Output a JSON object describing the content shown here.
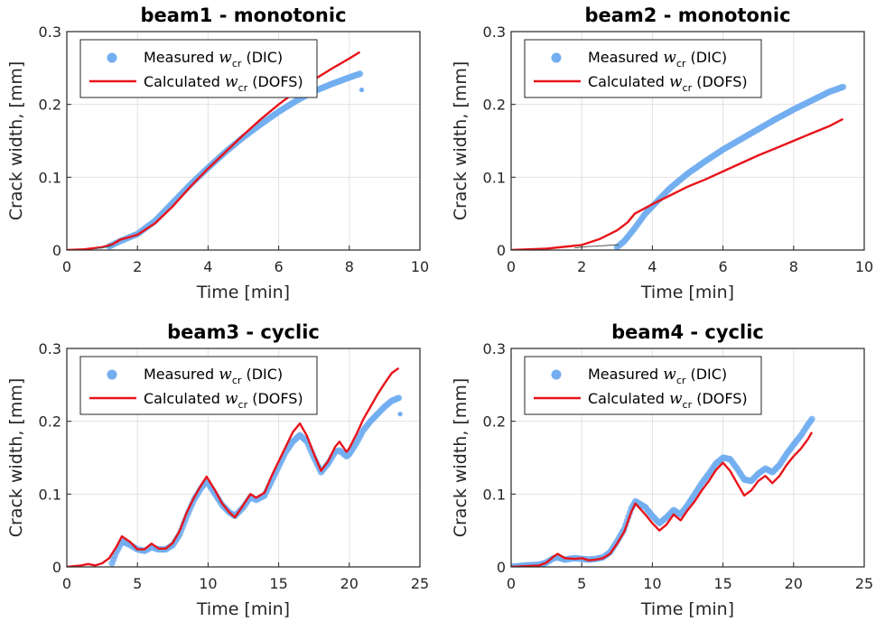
{
  "colors": {
    "measured": "#72aef0",
    "calculated": "#e8141b",
    "thin": "#555555",
    "grid": "#e2e2e2",
    "axis": "#262626"
  },
  "chart_data": [
    {
      "type": "line",
      "title": "beam1 - monotonic",
      "xlabel": "Time [min]",
      "ylabel": "Crack width, [mm]",
      "xlim": [
        0,
        10
      ],
      "ylim": [
        0,
        0.3
      ],
      "xticks": [
        0,
        2,
        4,
        6,
        8,
        10
      ],
      "yticks": [
        0,
        0.1,
        0.2,
        0.3
      ],
      "xtick_labels": [
        "0",
        "2",
        "4",
        "6",
        "8",
        "10"
      ],
      "ytick_labels": [
        "0",
        "0.1",
        "0.2",
        "0.3"
      ],
      "grid": true,
      "legend": {
        "placement": "top-left",
        "measured": {
          "pre": "Measured",
          "var": "w",
          "sub": "cr",
          "post": "(DIC)"
        },
        "calculated": {
          "pre": "Calculated",
          "var": "w",
          "sub": "cr",
          "post": "(DOFS)"
        }
      },
      "series": [
        {
          "name": "Measured w_cr (DIC)",
          "style": "dots",
          "x": [
            1.2,
            1.5,
            2,
            2.5,
            3,
            3.5,
            4,
            4.5,
            5,
            5.5,
            6,
            6.5,
            7,
            7.5,
            8,
            8.3
          ],
          "y": [
            0.005,
            0.012,
            0.022,
            0.04,
            0.065,
            0.09,
            0.113,
            0.135,
            0.155,
            0.173,
            0.19,
            0.205,
            0.218,
            0.228,
            0.237,
            0.242
          ]
        },
        {
          "name": "Measured w_cr (DIC) outlier",
          "style": "dot",
          "x": [
            8.35
          ],
          "y": [
            0.22
          ]
        },
        {
          "name": "Calculated w_cr (DOFS)",
          "style": "line",
          "x": [
            0,
            0.5,
            1,
            1.3,
            1.5,
            2,
            2.5,
            3,
            3.5,
            4,
            4.5,
            5,
            5.5,
            6,
            6.5,
            7,
            7.5,
            8,
            8.3
          ],
          "y": [
            0,
            0.001,
            0.004,
            0.008,
            0.014,
            0.021,
            0.037,
            0.06,
            0.087,
            0.112,
            0.135,
            0.158,
            0.18,
            0.2,
            0.218,
            0.234,
            0.249,
            0.263,
            0.272
          ]
        },
        {
          "name": "thin line",
          "style": "thin",
          "x": [
            0.8,
            1,
            1.2,
            1.3
          ],
          "y": [
            0.002,
            0.003,
            0.005,
            0.007
          ]
        }
      ]
    },
    {
      "type": "line",
      "title": "beam2 - monotonic",
      "xlabel": "Time [min]",
      "ylabel": "Crack width, [mm]",
      "xlim": [
        0,
        10
      ],
      "ylim": [
        0,
        0.3
      ],
      "xticks": [
        0,
        2,
        4,
        6,
        8,
        10
      ],
      "yticks": [
        0,
        0.1,
        0.2,
        0.3
      ],
      "xtick_labels": [
        "0",
        "2",
        "4",
        "6",
        "8",
        "10"
      ],
      "ytick_labels": [
        "0",
        "0.1",
        "0.2",
        "0.3"
      ],
      "grid": true,
      "legend": {
        "placement": "top-left",
        "measured": {
          "pre": "Measured",
          "var": "w",
          "sub": "cr",
          "post": "(DIC)"
        },
        "calculated": {
          "pre": "Calculated",
          "var": "w",
          "sub": "cr",
          "post": "(DOFS)"
        }
      },
      "series": [
        {
          "name": "Measured w_cr (DIC)",
          "style": "dots",
          "x": [
            3,
            3.2,
            3.5,
            3.8,
            4,
            4.5,
            5,
            5.5,
            6,
            6.5,
            7,
            7.5,
            8,
            8.5,
            9,
            9.4
          ],
          "y": [
            0.004,
            0.012,
            0.03,
            0.05,
            0.06,
            0.085,
            0.105,
            0.122,
            0.138,
            0.152,
            0.166,
            0.18,
            0.193,
            0.205,
            0.217,
            0.224
          ]
        },
        {
          "name": "Calculated w_cr (DOFS)",
          "style": "line",
          "x": [
            0,
            1,
            2,
            2.5,
            3,
            3.3,
            3.5,
            4,
            4.5,
            5,
            5.5,
            6,
            6.5,
            7,
            7.5,
            8,
            8.5,
            9,
            9.4
          ],
          "y": [
            0,
            0.002,
            0.007,
            0.015,
            0.027,
            0.038,
            0.05,
            0.063,
            0.075,
            0.087,
            0.097,
            0.108,
            0.119,
            0.13,
            0.14,
            0.15,
            0.16,
            0.17,
            0.18
          ]
        },
        {
          "name": "thin line",
          "style": "thin",
          "x": [
            1.8,
            2.2,
            2.6,
            2.9,
            3,
            3.05
          ],
          "y": [
            0.003,
            0.005,
            0.006,
            0.007,
            0.007,
            0.006
          ]
        }
      ]
    },
    {
      "type": "line",
      "title": "beam3 - cyclic",
      "xlabel": "Time [min]",
      "ylabel": "Crack width, [mm]",
      "xlim": [
        0,
        25
      ],
      "ylim": [
        0,
        0.3
      ],
      "xticks": [
        0,
        5,
        10,
        15,
        20,
        25
      ],
      "yticks": [
        0,
        0.1,
        0.2,
        0.3
      ],
      "xtick_labels": [
        "0",
        "5",
        "10",
        "15",
        "20",
        "25"
      ],
      "ytick_labels": [
        "0",
        "0.1",
        "0.2",
        "0.3"
      ],
      "grid": true,
      "legend": {
        "placement": "top-left",
        "measured": {
          "pre": "Measured",
          "var": "w",
          "sub": "cr",
          "post": "(DIC)"
        },
        "calculated": {
          "pre": "Calculated",
          "var": "w",
          "sub": "cr",
          "post": "(DOFS)"
        }
      },
      "series": [
        {
          "name": "Measured w_cr (DIC)",
          "style": "dots",
          "x": [
            3.2,
            3.5,
            3.9,
            4.5,
            5,
            5.5,
            6,
            6.5,
            7,
            7.5,
            8,
            8.5,
            9,
            9.5,
            9.9,
            10.5,
            11,
            11.5,
            11.9,
            12.5,
            13,
            13.4,
            14,
            14.5,
            15,
            15.5,
            16,
            16.5,
            17,
            17.5,
            18,
            18.5,
            19,
            19.3,
            19.8,
            20,
            20.5,
            21,
            21.5,
            22,
            22.5,
            23,
            23.5
          ],
          "y": [
            0.005,
            0.02,
            0.035,
            0.03,
            0.024,
            0.022,
            0.027,
            0.024,
            0.024,
            0.03,
            0.045,
            0.07,
            0.092,
            0.108,
            0.118,
            0.1,
            0.085,
            0.075,
            0.07,
            0.082,
            0.096,
            0.092,
            0.098,
            0.118,
            0.138,
            0.158,
            0.172,
            0.181,
            0.172,
            0.15,
            0.13,
            0.142,
            0.158,
            0.16,
            0.152,
            0.155,
            0.17,
            0.188,
            0.2,
            0.21,
            0.22,
            0.228,
            0.232
          ]
        },
        {
          "name": "Measured w_cr (DIC) outlier",
          "style": "dot",
          "x": [
            23.6
          ],
          "y": [
            0.21
          ]
        },
        {
          "name": "Calculated w_cr (DOFS)",
          "style": "line",
          "x": [
            0,
            1,
            1.5,
            2,
            2.5,
            3,
            3.5,
            3.9,
            4.5,
            5,
            5.5,
            6,
            6.5,
            7,
            7.5,
            8,
            8.5,
            9,
            9.5,
            9.9,
            10.5,
            11,
            11.5,
            11.9,
            12.5,
            13,
            13.4,
            14,
            14.5,
            15,
            15.5,
            16,
            16.5,
            17,
            17.5,
            18,
            18.5,
            19,
            19.3,
            19.8,
            20,
            20.5,
            21,
            21.5,
            22,
            22.5,
            23,
            23.5
          ],
          "y": [
            0,
            0.002,
            0.004,
            0.002,
            0.005,
            0.012,
            0.027,
            0.042,
            0.034,
            0.024,
            0.024,
            0.032,
            0.025,
            0.025,
            0.033,
            0.05,
            0.075,
            0.095,
            0.112,
            0.124,
            0.105,
            0.087,
            0.075,
            0.068,
            0.085,
            0.1,
            0.095,
            0.102,
            0.125,
            0.145,
            0.165,
            0.185,
            0.197,
            0.18,
            0.155,
            0.132,
            0.145,
            0.165,
            0.172,
            0.158,
            0.163,
            0.182,
            0.203,
            0.22,
            0.237,
            0.252,
            0.266,
            0.273
          ]
        }
      ]
    },
    {
      "type": "line",
      "title": "beam4 - cyclic",
      "xlabel": "Time [min]",
      "ylabel": "Crack width, [mm]",
      "xlim": [
        0,
        25
      ],
      "ylim": [
        0,
        0.3
      ],
      "xticks": [
        0,
        5,
        10,
        15,
        20,
        25
      ],
      "yticks": [
        0,
        0.1,
        0.2,
        0.3
      ],
      "xtick_labels": [
        "0",
        "5",
        "10",
        "15",
        "20",
        "25"
      ],
      "ytick_labels": [
        "0",
        "0.1",
        "0.2",
        "0.3"
      ],
      "grid": true,
      "legend": {
        "placement": "top-left",
        "measured": {
          "pre": "Measured",
          "var": "w",
          "sub": "cr",
          "post": "(DIC)"
        },
        "calculated": {
          "pre": "Calculated",
          "var": "w",
          "sub": "cr",
          "post": "(DOFS)"
        }
      },
      "series": [
        {
          "name": "Measured w_cr (DIC)",
          "style": "dots",
          "x": [
            0,
            1,
            2,
            2.5,
            3,
            3.3,
            3.8,
            4.5,
            5,
            5.5,
            6,
            6.5,
            7,
            7.5,
            8,
            8.5,
            8.8,
            9.5,
            10,
            10.5,
            11,
            11.5,
            12,
            12.5,
            13,
            13.5,
            14,
            14.5,
            15,
            15.5,
            16,
            16.5,
            17,
            17.5,
            18,
            18.5,
            19,
            19.5,
            20,
            20.5,
            21,
            21.3
          ],
          "y": [
            0,
            0.002,
            0.003,
            0.006,
            0.012,
            0.013,
            0.01,
            0.012,
            0.011,
            0.01,
            0.011,
            0.013,
            0.02,
            0.035,
            0.052,
            0.08,
            0.09,
            0.082,
            0.07,
            0.06,
            0.068,
            0.078,
            0.072,
            0.085,
            0.1,
            0.115,
            0.128,
            0.142,
            0.15,
            0.148,
            0.135,
            0.12,
            0.118,
            0.128,
            0.135,
            0.13,
            0.14,
            0.155,
            0.168,
            0.18,
            0.195,
            0.203
          ]
        },
        {
          "name": "Calculated w_cr (DOFS)",
          "style": "line",
          "x": [
            0,
            1,
            2,
            2.5,
            3,
            3.3,
            3.8,
            4.5,
            5,
            5.5,
            6,
            6.5,
            7,
            7.5,
            8,
            8.5,
            8.8,
            9.5,
            10,
            10.5,
            11,
            11.5,
            12,
            12.5,
            13,
            13.5,
            14,
            14.5,
            15,
            15.5,
            16,
            16.5,
            17,
            17.5,
            18,
            18.5,
            19,
            19.5,
            20,
            20.5,
            21,
            21.3
          ],
          "y": [
            0,
            0.001,
            0.002,
            0.006,
            0.014,
            0.018,
            0.012,
            0.011,
            0.012,
            0.009,
            0.01,
            0.012,
            0.018,
            0.032,
            0.048,
            0.075,
            0.087,
            0.072,
            0.06,
            0.05,
            0.058,
            0.072,
            0.064,
            0.078,
            0.09,
            0.105,
            0.118,
            0.133,
            0.143,
            0.132,
            0.115,
            0.098,
            0.105,
            0.118,
            0.125,
            0.115,
            0.125,
            0.14,
            0.152,
            0.162,
            0.175,
            0.185
          ]
        }
      ]
    }
  ]
}
